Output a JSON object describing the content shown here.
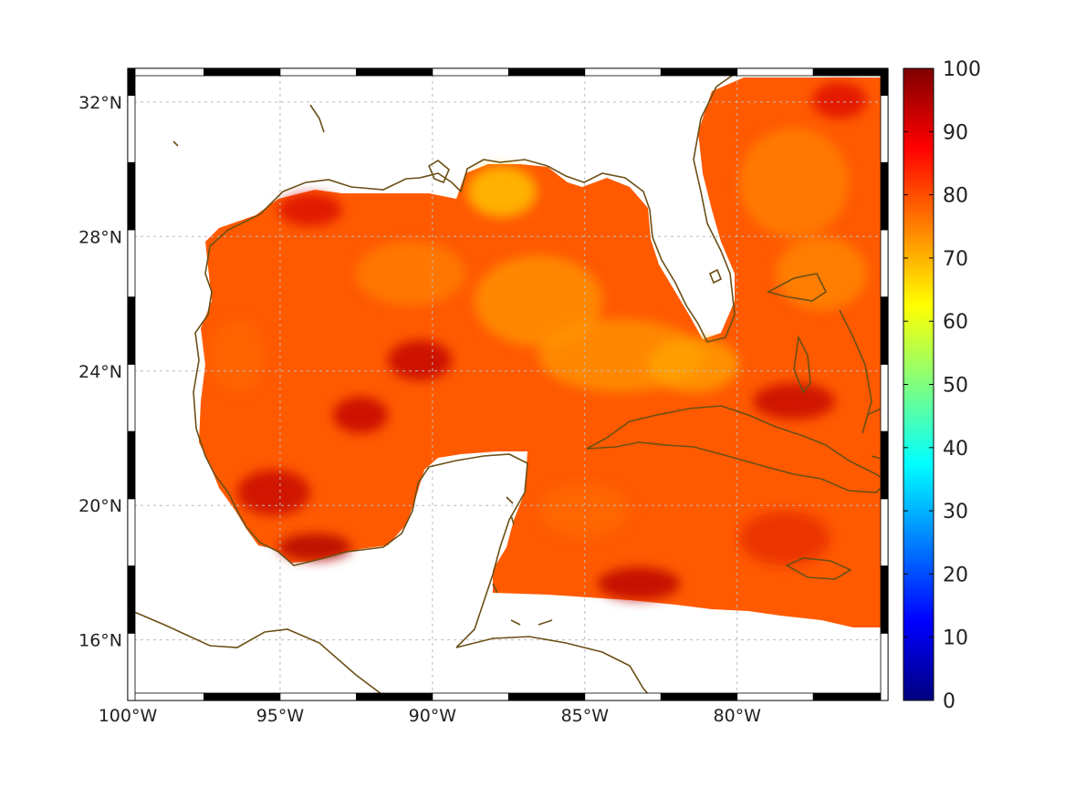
{
  "chart_data": {
    "type": "heatmap",
    "title": "",
    "xlabel": "",
    "ylabel": "",
    "xlim": [
      -100,
      -75.05
    ],
    "ylim": [
      14.2,
      33
    ],
    "xticks": [
      {
        "value": -100,
        "label": "100°W"
      },
      {
        "value": -95,
        "label": "95°W"
      },
      {
        "value": -90,
        "label": "90°W"
      },
      {
        "value": -85,
        "label": "85°W"
      },
      {
        "value": -80,
        "label": "80°W"
      }
    ],
    "yticks": [
      {
        "value": 32,
        "label": "32°N"
      },
      {
        "value": 28,
        "label": "28°N"
      },
      {
        "value": 24,
        "label": "24°N"
      },
      {
        "value": 20,
        "label": "20°N"
      },
      {
        "value": 16,
        "label": "16°N"
      }
    ],
    "grid": true,
    "colorbar": {
      "min": 0,
      "max": 100,
      "colormap": "jet",
      "ticks": [
        {
          "value": 100,
          "label": "100"
        },
        {
          "value": 90,
          "label": "90"
        },
        {
          "value": 80,
          "label": "80"
        },
        {
          "value": 70,
          "label": "70"
        },
        {
          "value": 60,
          "label": "60"
        },
        {
          "value": 50,
          "label": "50"
        },
        {
          "value": 40,
          "label": "40"
        },
        {
          "value": 30,
          "label": "30"
        },
        {
          "value": 20,
          "label": "20"
        },
        {
          "value": 10,
          "label": "10"
        },
        {
          "value": 0,
          "label": "0"
        }
      ]
    },
    "field_description_range": [
      68,
      95
    ],
    "coastline_color": "#6b4f16",
    "grid_color": "#bbbbbb"
  }
}
